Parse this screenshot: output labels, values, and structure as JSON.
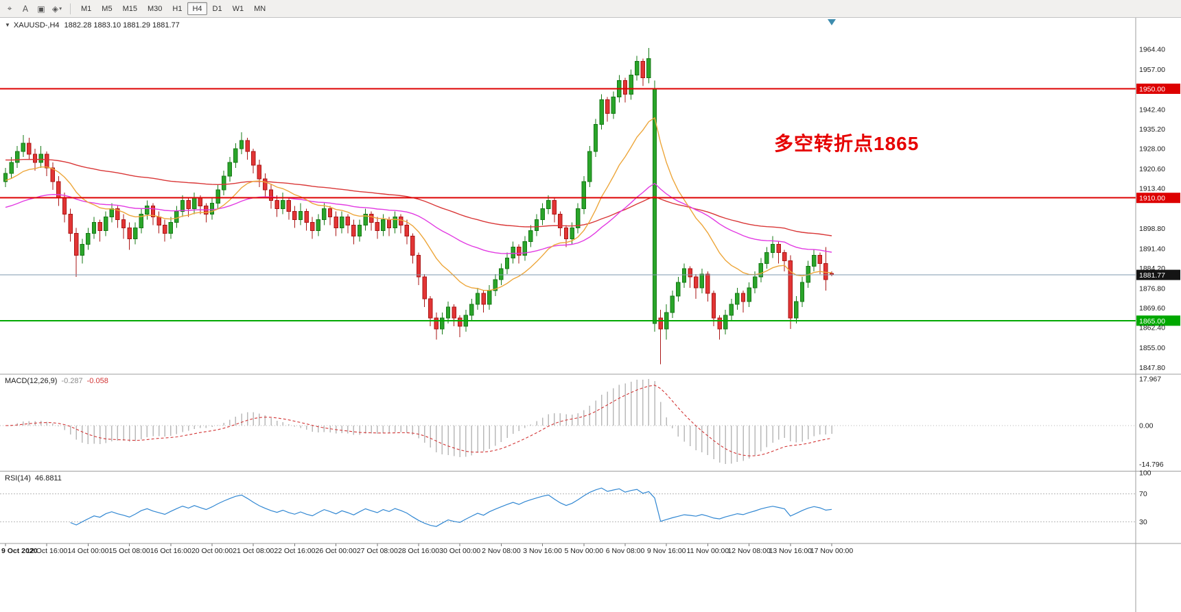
{
  "toolbar": {
    "tools": [
      {
        "name": "crosshair",
        "glyph": "⌖"
      },
      {
        "name": "text",
        "glyph": "A"
      },
      {
        "name": "label",
        "glyph": "▣"
      },
      {
        "name": "shapes",
        "glyph": "◈",
        "caret": "▾"
      }
    ],
    "timeframes": [
      "M1",
      "M5",
      "M15",
      "M30",
      "H1",
      "H4",
      "D1",
      "W1",
      "MN"
    ],
    "active_timeframe": "H4"
  },
  "chart_data": {
    "type": "candlestick",
    "symbol_title": "XAUUSD-,H4",
    "ohlc_line": "1882.28 1883.10 1881.29 1881.77",
    "annotation": {
      "text": "多空转折点1865",
      "color": "#e60000"
    },
    "y_range": [
      1845.5,
      1976.0
    ],
    "y_ticks": [
      "1964.40",
      "1957.00",
      "1942.40",
      "1935.20",
      "1928.00",
      "1920.60",
      "1913.40",
      "1898.80",
      "1891.40",
      "1884.20",
      "1876.80",
      "1869.60",
      "1862.40",
      "1855.00",
      "1847.80"
    ],
    "x_labels": [
      "9 Oct 2020",
      "12 Oct 16:00",
      "14 Oct 00:00",
      "15 Oct 08:00",
      "16 Oct 16:00",
      "20 Oct 00:00",
      "21 Oct 08:00",
      "22 Oct 16:00",
      "26 Oct 00:00",
      "27 Oct 08:00",
      "28 Oct 16:00",
      "30 Oct 00:00",
      "2 Nov 08:00",
      "3 Nov 16:00",
      "5 Nov 00:00",
      "6 Nov 08:00",
      "9 Nov 16:00",
      "11 Nov 00:00",
      "12 Nov 08:00",
      "13 Nov 16:00",
      "17 Nov 00:00"
    ],
    "up_color": "#2aa52a",
    "up_stroke": "#157815",
    "down_color": "#e23535",
    "down_stroke": "#aa1515",
    "candles": [
      [
        1916,
        1921,
        1914,
        1919
      ],
      [
        1919,
        1925,
        1917,
        1923
      ],
      [
        1923,
        1929,
        1921,
        1927
      ],
      [
        1927,
        1933,
        1925,
        1930
      ],
      [
        1930,
        1932,
        1924,
        1926
      ],
      [
        1926,
        1928,
        1920,
        1923
      ],
      [
        1923,
        1929,
        1921,
        1926
      ],
      [
        1926,
        1927,
        1918,
        1921
      ],
      [
        1921,
        1923,
        1913,
        1916
      ],
      [
        1916,
        1918,
        1907,
        1910
      ],
      [
        1910,
        1912,
        1901,
        1904
      ],
      [
        1904,
        1906,
        1894,
        1897
      ],
      [
        1897,
        1899,
        1881,
        1889
      ],
      [
        1889,
        1895,
        1886,
        1893
      ],
      [
        1893,
        1899,
        1891,
        1897
      ],
      [
        1897,
        1903,
        1895,
        1901
      ],
      [
        1901,
        1902,
        1894,
        1898
      ],
      [
        1898,
        1905,
        1896,
        1903
      ],
      [
        1903,
        1908,
        1901,
        1906
      ],
      [
        1906,
        1907,
        1899,
        1902
      ],
      [
        1902,
        1904,
        1895,
        1899
      ],
      [
        1899,
        1901,
        1891,
        1895
      ],
      [
        1895,
        1901,
        1893,
        1899
      ],
      [
        1899,
        1906,
        1897,
        1904
      ],
      [
        1904,
        1909,
        1902,
        1907
      ],
      [
        1907,
        1908,
        1900,
        1903
      ],
      [
        1903,
        1905,
        1897,
        1900
      ],
      [
        1900,
        1902,
        1894,
        1897
      ],
      [
        1897,
        1903,
        1895,
        1901
      ],
      [
        1901,
        1907,
        1899,
        1905
      ],
      [
        1905,
        1911,
        1903,
        1909
      ],
      [
        1909,
        1910,
        1903,
        1906
      ],
      [
        1906,
        1912,
        1904,
        1910
      ],
      [
        1910,
        1911,
        1904,
        1907
      ],
      [
        1907,
        1908,
        1901,
        1904
      ],
      [
        1904,
        1910,
        1902,
        1908
      ],
      [
        1908,
        1915,
        1906,
        1913
      ],
      [
        1913,
        1920,
        1911,
        1918
      ],
      [
        1918,
        1925,
        1916,
        1923
      ],
      [
        1923,
        1930,
        1921,
        1928
      ],
      [
        1928,
        1934,
        1926,
        1931
      ],
      [
        1931,
        1932,
        1924,
        1927
      ],
      [
        1927,
        1928,
        1919,
        1922
      ],
      [
        1922,
        1924,
        1914,
        1917
      ],
      [
        1917,
        1919,
        1910,
        1913
      ],
      [
        1913,
        1915,
        1906,
        1909
      ],
      [
        1909,
        1911,
        1903,
        1906
      ],
      [
        1906,
        1912,
        1904,
        1909
      ],
      [
        1909,
        1910,
        1902,
        1905
      ],
      [
        1905,
        1907,
        1899,
        1902
      ],
      [
        1902,
        1908,
        1900,
        1905
      ],
      [
        1905,
        1906,
        1898,
        1901
      ],
      [
        1901,
        1903,
        1895,
        1898
      ],
      [
        1898,
        1904,
        1896,
        1902
      ],
      [
        1902,
        1908,
        1900,
        1906
      ],
      [
        1906,
        1907,
        1900,
        1903
      ],
      [
        1903,
        1905,
        1896,
        1899
      ],
      [
        1899,
        1905,
        1897,
        1903
      ],
      [
        1903,
        1904,
        1897,
        1900
      ],
      [
        1900,
        1902,
        1893,
        1896
      ],
      [
        1896,
        1902,
        1894,
        1900
      ],
      [
        1900,
        1906,
        1898,
        1904
      ],
      [
        1904,
        1905,
        1898,
        1901
      ],
      [
        1901,
        1903,
        1895,
        1898
      ],
      [
        1898,
        1904,
        1896,
        1902
      ],
      [
        1902,
        1903,
        1896,
        1899
      ],
      [
        1899,
        1905,
        1897,
        1903
      ],
      [
        1903,
        1904,
        1897,
        1900
      ],
      [
        1900,
        1902,
        1893,
        1896
      ],
      [
        1896,
        1897,
        1886,
        1889
      ],
      [
        1889,
        1890,
        1878,
        1881
      ],
      [
        1881,
        1882,
        1870,
        1873
      ],
      [
        1873,
        1874,
        1863,
        1866
      ],
      [
        1866,
        1868,
        1858,
        1862
      ],
      [
        1862,
        1868,
        1860,
        1866
      ],
      [
        1866,
        1872,
        1864,
        1870
      ],
      [
        1870,
        1871,
        1863,
        1866
      ],
      [
        1866,
        1867,
        1859,
        1863
      ],
      [
        1863,
        1869,
        1861,
        1867
      ],
      [
        1867,
        1873,
        1865,
        1871
      ],
      [
        1871,
        1877,
        1869,
        1875
      ],
      [
        1875,
        1876,
        1868,
        1871
      ],
      [
        1871,
        1878,
        1869,
        1876
      ],
      [
        1876,
        1882,
        1874,
        1880
      ],
      [
        1880,
        1886,
        1878,
        1884
      ],
      [
        1884,
        1890,
        1882,
        1888
      ],
      [
        1888,
        1894,
        1886,
        1892
      ],
      [
        1892,
        1893,
        1886,
        1889
      ],
      [
        1889,
        1896,
        1887,
        1894
      ],
      [
        1894,
        1900,
        1892,
        1898
      ],
      [
        1898,
        1904,
        1896,
        1902
      ],
      [
        1902,
        1908,
        1900,
        1906
      ],
      [
        1906,
        1911,
        1904,
        1909
      ],
      [
        1909,
        1910,
        1901,
        1904
      ],
      [
        1904,
        1905,
        1896,
        1899
      ],
      [
        1899,
        1900,
        1892,
        1895
      ],
      [
        1895,
        1901,
        1893,
        1899
      ],
      [
        1899,
        1908,
        1897,
        1906
      ],
      [
        1906,
        1918,
        1904,
        1916
      ],
      [
        1916,
        1929,
        1914,
        1927
      ],
      [
        1927,
        1939,
        1925,
        1937
      ],
      [
        1937,
        1948,
        1935,
        1946
      ],
      [
        1946,
        1947,
        1938,
        1941
      ],
      [
        1941,
        1949,
        1939,
        1947
      ],
      [
        1947,
        1955,
        1945,
        1953
      ],
      [
        1953,
        1954,
        1945,
        1948
      ],
      [
        1948,
        1957,
        1946,
        1955
      ],
      [
        1955,
        1962,
        1953,
        1960
      ],
      [
        1960,
        1961,
        1951,
        1954
      ],
      [
        1954,
        1965,
        1952,
        1961
      ],
      [
        1864,
        1953,
        1861,
        1950
      ],
      [
        1866,
        1869,
        1849,
        1862
      ],
      [
        1862,
        1871,
        1858,
        1868
      ],
      [
        1868,
        1876,
        1866,
        1874
      ],
      [
        1874,
        1881,
        1872,
        1879
      ],
      [
        1879,
        1886,
        1877,
        1884
      ],
      [
        1884,
        1885,
        1877,
        1881
      ],
      [
        1881,
        1882,
        1873,
        1877
      ],
      [
        1877,
        1884,
        1875,
        1882
      ],
      [
        1882,
        1883,
        1872,
        1875
      ],
      [
        1875,
        1876,
        1863,
        1866
      ],
      [
        1866,
        1867,
        1858,
        1862
      ],
      [
        1862,
        1869,
        1860,
        1867
      ],
      [
        1867,
        1873,
        1865,
        1871
      ],
      [
        1871,
        1877,
        1869,
        1875
      ],
      [
        1875,
        1876,
        1868,
        1872
      ],
      [
        1872,
        1879,
        1870,
        1877
      ],
      [
        1877,
        1883,
        1875,
        1881
      ],
      [
        1881,
        1888,
        1879,
        1886
      ],
      [
        1886,
        1892,
        1884,
        1890
      ],
      [
        1890,
        1896,
        1888,
        1893
      ],
      [
        1893,
        1894,
        1886,
        1890
      ],
      [
        1890,
        1891,
        1883,
        1887
      ],
      [
        1887,
        1889,
        1862,
        1866
      ],
      [
        1866,
        1874,
        1864,
        1872
      ],
      [
        1872,
        1881,
        1870,
        1879
      ],
      [
        1879,
        1887,
        1877,
        1885
      ],
      [
        1885,
        1891,
        1883,
        1889
      ],
      [
        1889,
        1890,
        1882,
        1886
      ],
      [
        1886,
        1892,
        1876,
        1880
      ],
      [
        1882.28,
        1883.1,
        1881.29,
        1881.77
      ]
    ],
    "moving_averages": [
      {
        "name": "ma-slow",
        "period": 100,
        "seed": 1924,
        "color": "#d93636"
      },
      {
        "name": "ma-medium",
        "period": 50,
        "seed": 1906,
        "color": "#e23ae2"
      },
      {
        "name": "ma-fast",
        "period": 16,
        "seed": 1916,
        "color": "#eda63a"
      }
    ],
    "horizontal_lines": [
      {
        "price": 1950.0,
        "label": "1950.00",
        "color": "#dd0000"
      },
      {
        "price": 1910.0,
        "label": "1910.00",
        "color": "#dd0000"
      },
      {
        "price": 1865.0,
        "label": "1865.00",
        "color": "#00a800"
      }
    ],
    "current_price": {
      "value": 1881.77,
      "label": "1881.77",
      "line_color": "#7e99ad",
      "badge_bg": "#141414"
    },
    "macd": {
      "label": "MACD(12,26,9)",
      "main_value": "-0.287",
      "signal_value": "-0.058",
      "fast": 12,
      "slow": 26,
      "signal": 9,
      "axis_max": "17.967",
      "axis_zero": "0.00",
      "axis_min": "-14.796",
      "histogram_color": "#b9b9b9",
      "signal_color": "#d23434",
      "main_value_color": "#8a8a8a"
    },
    "rsi": {
      "label": "RSI(14)",
      "value": "46.8811",
      "period": 14,
      "levels": [
        70,
        30
      ],
      "axis_labels": [
        "100",
        "70",
        "30"
      ],
      "line_color": "#2f86d2"
    }
  }
}
